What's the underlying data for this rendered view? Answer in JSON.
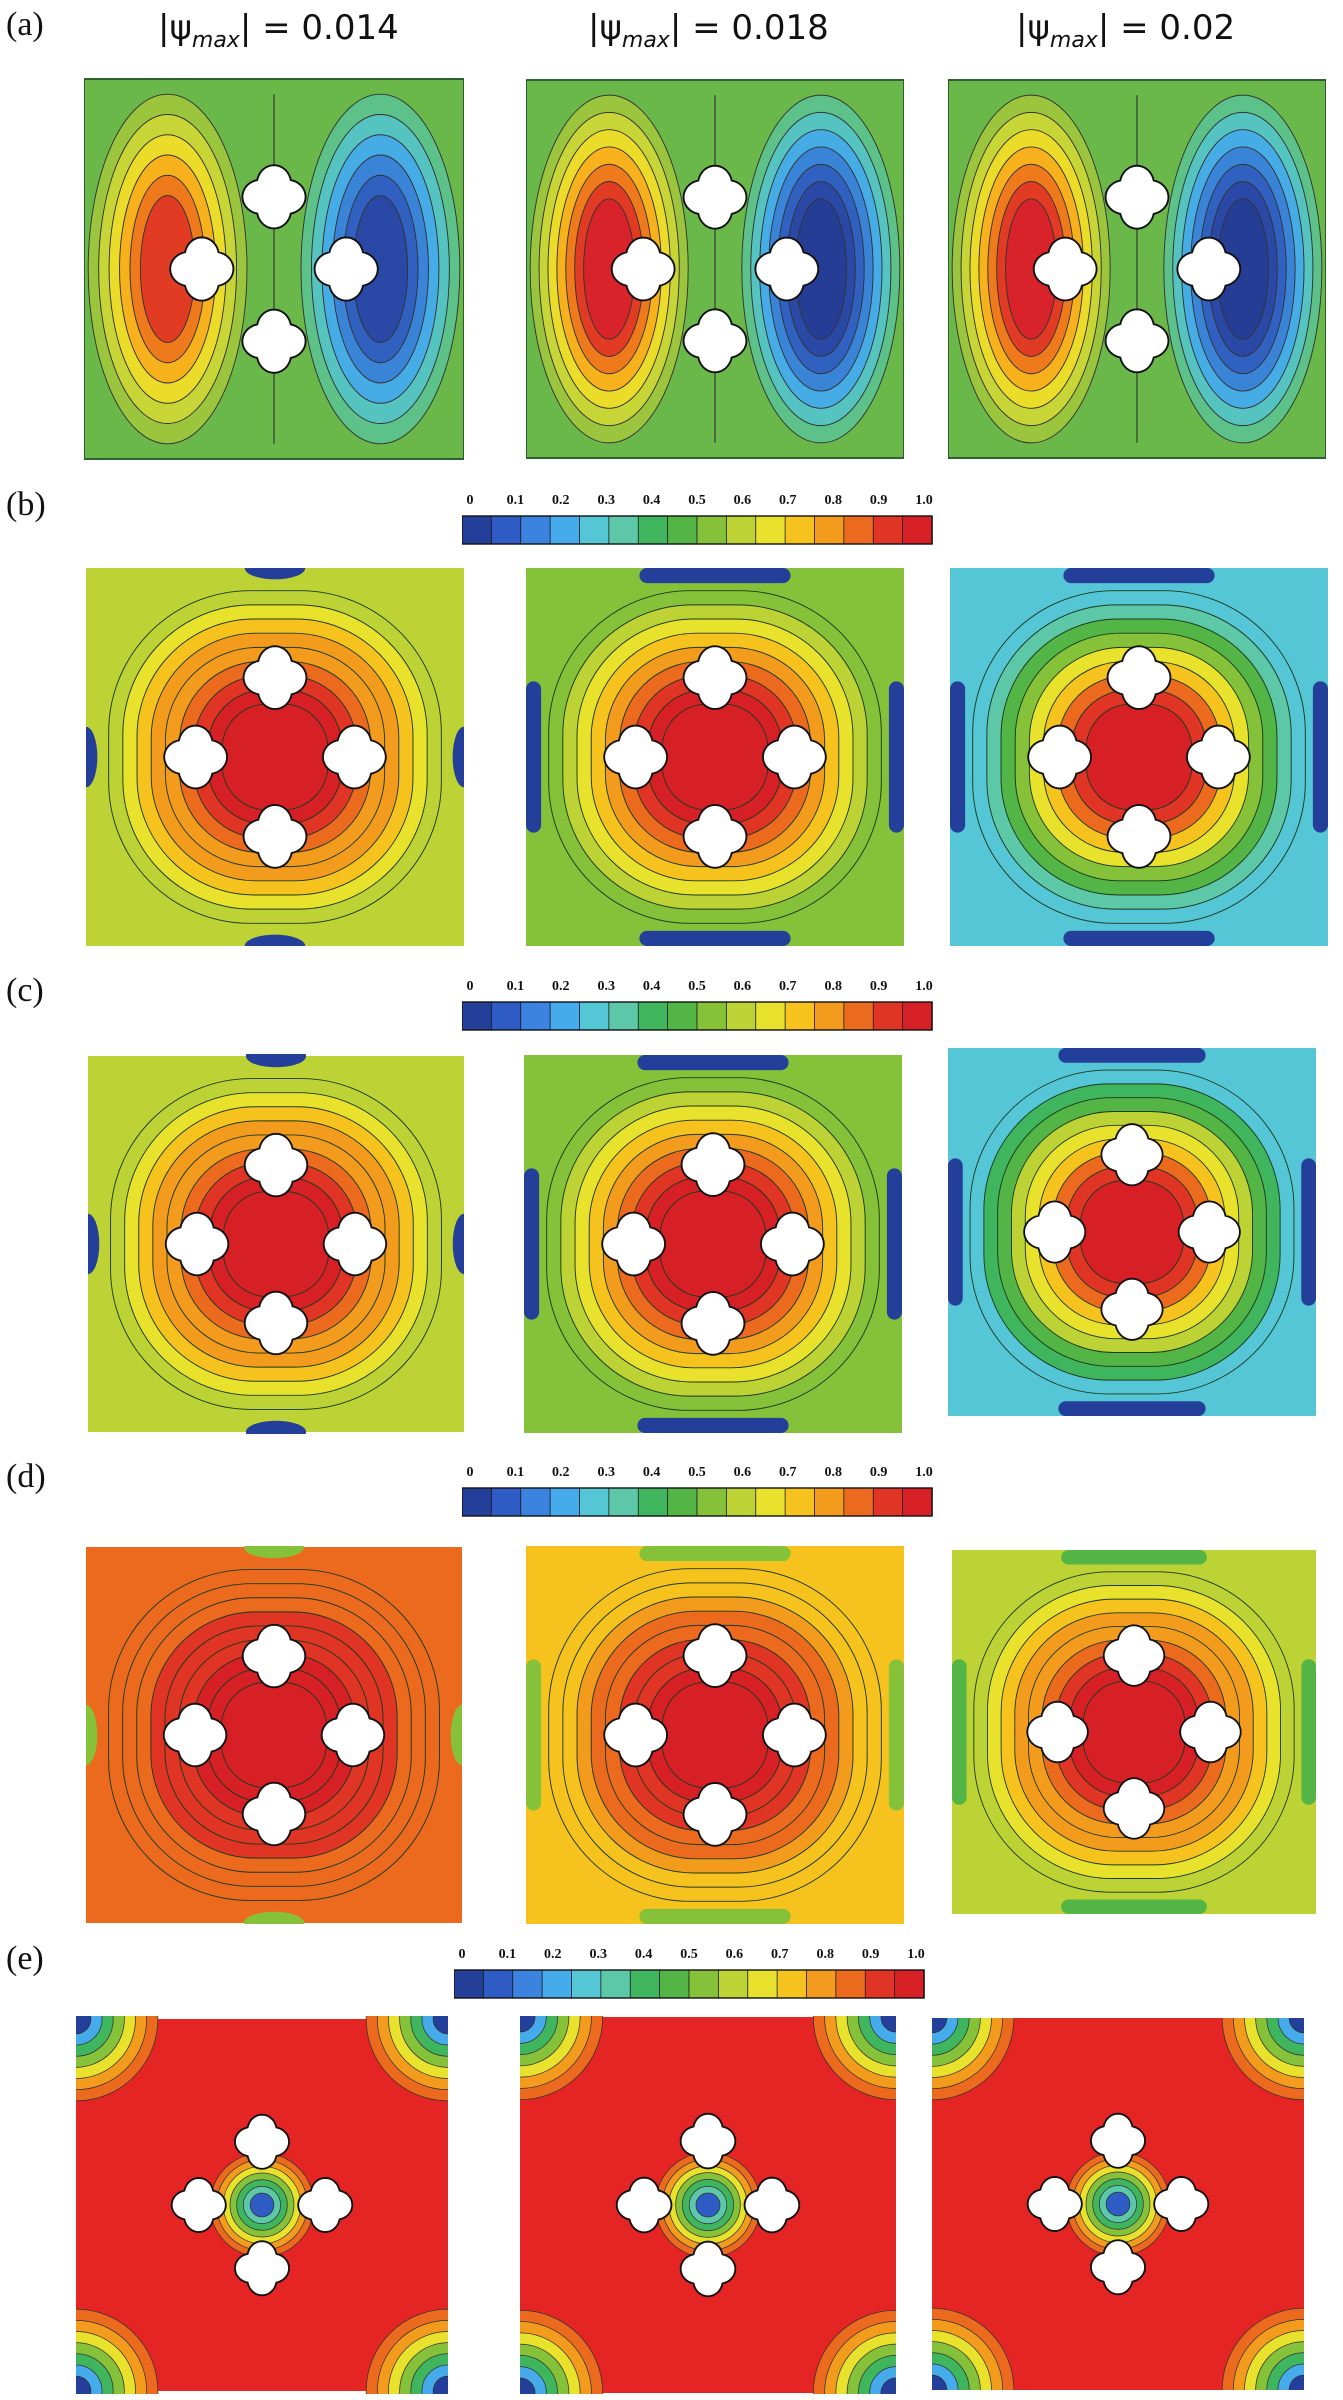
{
  "rows": [
    {
      "label": "(a)",
      "kind": "stream"
    },
    {
      "label": "(b)",
      "kind": "temperature"
    },
    {
      "label": "(c)",
      "kind": "temperature"
    },
    {
      "label": "(d)",
      "kind": "temperature"
    },
    {
      "label": "(e)",
      "kind": "concentration"
    }
  ],
  "columns": [
    {
      "psi_prefix": "|ψ",
      "psi_sub": "max",
      "psi_value": "| = 0.014"
    },
    {
      "psi_prefix": "|ψ",
      "psi_sub": "max",
      "psi_value": "| = 0.018"
    },
    {
      "psi_prefix": "|ψ",
      "psi_sub": "max",
      "psi_value": "| = 0.02"
    }
  ],
  "colorbar": {
    "tick_labels": [
      "0",
      "0.1",
      "0.2",
      "0.3",
      "0.4",
      "0.5",
      "0.6",
      "0.7",
      "0.8",
      "0.9",
      "1.0"
    ],
    "colors": [
      "#233f9a",
      "#2e5cc4",
      "#3b83de",
      "#45abea",
      "#54c6d6",
      "#5cc8a8",
      "#3fb55e",
      "#52b545",
      "#86c13a",
      "#bdd234",
      "#e8e22d",
      "#f6c21e",
      "#f39b1c",
      "#ec6a1d",
      "#e03424",
      "#d71f26"
    ]
  }
}
